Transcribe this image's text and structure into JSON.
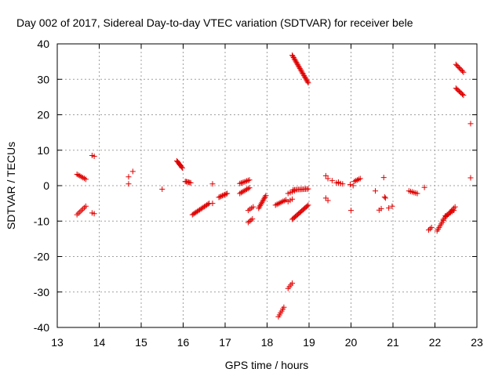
{
  "chart_data": {
    "type": "scatter",
    "title": "Day 002 of 2017, Sidereal Day-to-day VTEC variation (SDTVAR) for receiver bele",
    "xlabel": "GPS time / hours",
    "ylabel": "SDTVAR / TECUs",
    "xlim": [
      13,
      23
    ],
    "ylim": [
      -40,
      40
    ],
    "xticks": [
      "13",
      "14",
      "15",
      "16",
      "17",
      "18",
      "19",
      "20",
      "21",
      "22",
      "23"
    ],
    "yticks": [
      "40",
      "30",
      "20",
      "10",
      "0",
      "-10",
      "-20",
      "-30",
      "-40"
    ],
    "grid": true,
    "marker": "plus",
    "color": "#e00000",
    "segments": [
      {
        "x0": 13.47,
        "y0": 3.2,
        "x1": 13.68,
        "y1": 1.8,
        "n": 7
      },
      {
        "x0": 13.47,
        "y0": -8.2,
        "x1": 13.68,
        "y1": -5.8,
        "n": 7
      },
      {
        "x0": 13.83,
        "y0": 8.5,
        "x1": 13.88,
        "y1": 8.3,
        "n": 2
      },
      {
        "x0": 13.83,
        "y0": -7.7,
        "x1": 13.88,
        "y1": -7.9,
        "n": 2
      },
      {
        "x0": 15.85,
        "y0": 7.0,
        "x1": 15.98,
        "y1": 5.0,
        "n": 8
      },
      {
        "x0": 16.05,
        "y0": 1.2,
        "x1": 16.18,
        "y1": 0.8,
        "n": 6
      },
      {
        "x0": 16.22,
        "y0": -8.2,
        "x1": 16.62,
        "y1": -5.0,
        "n": 15
      },
      {
        "x0": 16.85,
        "y0": -3.3,
        "x1": 17.05,
        "y1": -2.2,
        "n": 8
      },
      {
        "x0": 17.35,
        "y0": 0.6,
        "x1": 17.58,
        "y1": 1.6,
        "n": 8
      },
      {
        "x0": 17.35,
        "y0": -2.2,
        "x1": 17.58,
        "y1": -0.6,
        "n": 8
      },
      {
        "x0": 17.55,
        "y0": -10.4,
        "x1": 17.65,
        "y1": -9.4,
        "n": 4
      },
      {
        "x0": 17.55,
        "y0": -7.0,
        "x1": 17.67,
        "y1": -6.0,
        "n": 4
      },
      {
        "x0": 17.8,
        "y0": -6.4,
        "x1": 17.97,
        "y1": -2.8,
        "n": 10
      },
      {
        "x0": 18.2,
        "y0": -5.5,
        "x1": 18.45,
        "y1": -4.0,
        "n": 8
      },
      {
        "x0": 18.27,
        "y0": -37.0,
        "x1": 18.4,
        "y1": -34.3,
        "n": 6
      },
      {
        "x0": 18.5,
        "y0": -29.0,
        "x1": 18.6,
        "y1": -27.5,
        "n": 4
      },
      {
        "x0": 18.5,
        "y0": -4.5,
        "x1": 18.6,
        "y1": -3.8,
        "n": 3
      },
      {
        "x0": 18.5,
        "y0": -2.2,
        "x1": 18.65,
        "y1": -1.5,
        "n": 4
      },
      {
        "x0": 18.6,
        "y0": -9.5,
        "x1": 18.98,
        "y1": -5.5,
        "n": 16
      },
      {
        "x0": 18.62,
        "y0": -1.2,
        "x1": 18.98,
        "y1": -0.9,
        "n": 12
      },
      {
        "x0": 18.6,
        "y0": 36.8,
        "x1": 18.98,
        "y1": 29.0,
        "n": 24
      },
      {
        "x0": 19.4,
        "y0": 2.8,
        "x1": 19.45,
        "y1": 2.0,
        "n": 2
      },
      {
        "x0": 19.4,
        "y0": -3.5,
        "x1": 19.45,
        "y1": -4.2,
        "n": 2
      },
      {
        "x0": 19.55,
        "y0": 1.4,
        "x1": 19.58,
        "y1": 1.2,
        "n": 1
      },
      {
        "x0": 19.65,
        "y0": 0.8,
        "x1": 19.8,
        "y1": 0.5,
        "n": 4
      },
      {
        "x0": 19.98,
        "y0": 0.3,
        "x1": 20.05,
        "y1": 0.0,
        "n": 2
      },
      {
        "x0": 20.08,
        "y0": 1.2,
        "x1": 20.22,
        "y1": 2.0,
        "n": 5
      },
      {
        "x0": 20.0,
        "y0": -7.0,
        "x1": 20.0,
        "y1": -7.0,
        "n": 1
      },
      {
        "x0": 20.58,
        "y0": -1.5,
        "x1": 20.58,
        "y1": -1.5,
        "n": 1
      },
      {
        "x0": 20.67,
        "y0": -6.9,
        "x1": 20.72,
        "y1": -6.5,
        "n": 2
      },
      {
        "x0": 20.78,
        "y0": 2.3,
        "x1": 20.78,
        "y1": 2.3,
        "n": 1
      },
      {
        "x0": 20.8,
        "y0": -3.2,
        "x1": 20.82,
        "y1": -3.5,
        "n": 2
      },
      {
        "x0": 20.9,
        "y0": -6.3,
        "x1": 20.98,
        "y1": -5.8,
        "n": 2
      },
      {
        "x0": 21.38,
        "y0": -1.5,
        "x1": 21.58,
        "y1": -2.2,
        "n": 6
      },
      {
        "x0": 21.75,
        "y0": -0.5,
        "x1": 21.75,
        "y1": -0.5,
        "n": 1
      },
      {
        "x0": 21.85,
        "y0": -12.5,
        "x1": 21.92,
        "y1": -11.8,
        "n": 3
      },
      {
        "x0": 22.05,
        "y0": -12.8,
        "x1": 22.2,
        "y1": -9.8,
        "n": 7
      },
      {
        "x0": 22.2,
        "y0": -9.5,
        "x1": 22.48,
        "y1": -6.0,
        "n": 10
      },
      {
        "x0": 22.25,
        "y0": -8.5,
        "x1": 22.45,
        "y1": -7.0,
        "n": 6
      },
      {
        "x0": 22.5,
        "y0": 34.2,
        "x1": 22.68,
        "y1": 32.0,
        "n": 8
      },
      {
        "x0": 22.5,
        "y0": 27.5,
        "x1": 22.68,
        "y1": 25.5,
        "n": 8
      },
      {
        "x0": 22.85,
        "y0": 17.5,
        "x1": 22.85,
        "y1": 17.5,
        "n": 1
      },
      {
        "x0": 22.85,
        "y0": 2.2,
        "x1": 22.85,
        "y1": 2.2,
        "n": 1
      }
    ],
    "points": [
      {
        "x": 14.7,
        "y": 2.5
      },
      {
        "x": 14.7,
        "y": 0.5
      },
      {
        "x": 14.8,
        "y": 4.0
      },
      {
        "x": 15.5,
        "y": -1.0
      },
      {
        "x": 16.7,
        "y": 0.5
      },
      {
        "x": 16.7,
        "y": -5.0
      },
      {
        "x": 19.7,
        "y": 1.0
      }
    ]
  }
}
